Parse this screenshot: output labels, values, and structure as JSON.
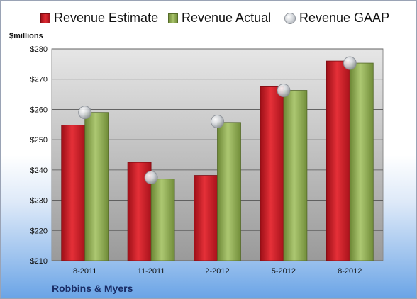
{
  "legend": {
    "estimate": "Revenue Estimate",
    "actual": "Revenue Actual",
    "gaap": "Revenue GAAP"
  },
  "unit_label": "$millions",
  "company": "Robbins & Myers",
  "colors": {
    "estimate": "#d8232c",
    "actual": "#9bb55c",
    "gaap": "#c8cbd0",
    "plot_bg_top": "#e6e6e6",
    "plot_bg_bottom": "#9a9a9a"
  },
  "chart_data": {
    "type": "bar",
    "categories": [
      "8-2011",
      "11-2011",
      "2-2012",
      "5-2012",
      "8-2012"
    ],
    "series": [
      {
        "name": "Revenue Estimate",
        "values": [
          254.8,
          242.5,
          238.2,
          267.5,
          276.0
        ]
      },
      {
        "name": "Revenue Actual",
        "values": [
          259.0,
          237.0,
          255.7,
          266.3,
          275.3
        ]
      },
      {
        "name": "Revenue GAAP",
        "marker": "circle",
        "values": [
          259.0,
          237.5,
          256.0,
          266.3,
          275.3
        ]
      }
    ],
    "ylim": [
      210,
      280
    ],
    "yticks": [
      210,
      220,
      230,
      240,
      250,
      260,
      270,
      280
    ],
    "ytick_labels": [
      "$210",
      "$220",
      "$230",
      "$240",
      "$250",
      "$260",
      "$270",
      "$280"
    ],
    "ylabel": "$millions",
    "title": "",
    "grid": true,
    "legend_position": "top"
  }
}
